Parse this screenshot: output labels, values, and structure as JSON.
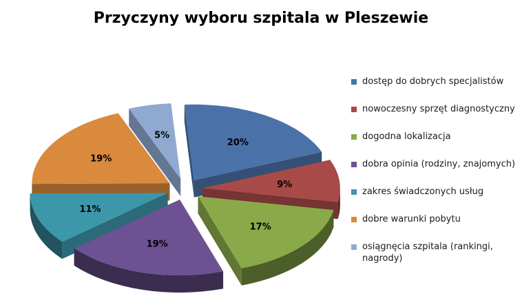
{
  "chart_data": {
    "type": "pie",
    "title": "Przyczyny wyboru szpitala w Pleszewie",
    "exploded": true,
    "style": "3d",
    "legend_position": "right",
    "slices": [
      {
        "label": "dostęp do dobrych specjalistów",
        "value": 20,
        "display": "20%",
        "color": "#4a72a8"
      },
      {
        "label": "nowoczesny sprzęt diagnostyczny",
        "value": 9,
        "display": "9%",
        "color": "#a84a47"
      },
      {
        "label": "dogodna lokalizacja",
        "value": 17,
        "display": "17%",
        "color": "#8aaa4a"
      },
      {
        "label": "dobra opinia (rodziny, znajomych)",
        "value": 19,
        "display": "19%",
        "color": "#6c5292"
      },
      {
        "label": "zakres świadczonych usług",
        "value": 11,
        "display": "11%",
        "color": "#3d97ab"
      },
      {
        "label": "dobre warunki pobytu",
        "value": 19,
        "display": "19%",
        "color": "#d98a3d"
      },
      {
        "label": "osiągnęcia szpitala (rankingi, nagrody)",
        "value": 5,
        "display": "5%",
        "color": "#8fa9d1"
      }
    ]
  }
}
